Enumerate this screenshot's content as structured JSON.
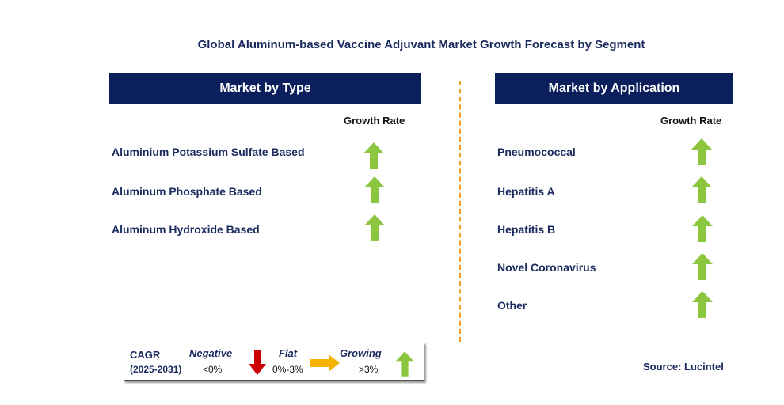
{
  "title": "Global Aluminum-based Vaccine Adjuvant Market Growth Forecast by Segment",
  "left_panel": {
    "header": "Market by Type",
    "growth_label": "Growth Rate",
    "items": [
      {
        "label": "Aluminium Potassium Sulfate Based",
        "trend": "growing"
      },
      {
        "label": "Aluminum Phosphate Based",
        "trend": "growing"
      },
      {
        "label": "Aluminum Hydroxide Based",
        "trend": "growing"
      }
    ]
  },
  "right_panel": {
    "header": "Market by Application",
    "growth_label": "Growth Rate",
    "items": [
      {
        "label": "Pneumococcal",
        "trend": "growing"
      },
      {
        "label": "Hepatitis A",
        "trend": "growing"
      },
      {
        "label": "Hepatitis B",
        "trend": "growing"
      },
      {
        "label": "Novel Coronavirus",
        "trend": "growing"
      },
      {
        "label": "Other",
        "trend": "growing"
      }
    ]
  },
  "legend": {
    "cagr_label": "CAGR",
    "period": "(2025-2031)",
    "negative": {
      "label": "Negative",
      "range": "<0%"
    },
    "flat": {
      "label": "Flat",
      "range": "0%-3%"
    },
    "growing": {
      "label": "Growing",
      "range": ">3%"
    }
  },
  "source": "Source: Lucintel",
  "colors": {
    "header_bg": "#0b1f5c",
    "growing": "#8cc63f",
    "negative": "#cc0000",
    "flat": "#f5b400",
    "divider": "#f0a020"
  }
}
